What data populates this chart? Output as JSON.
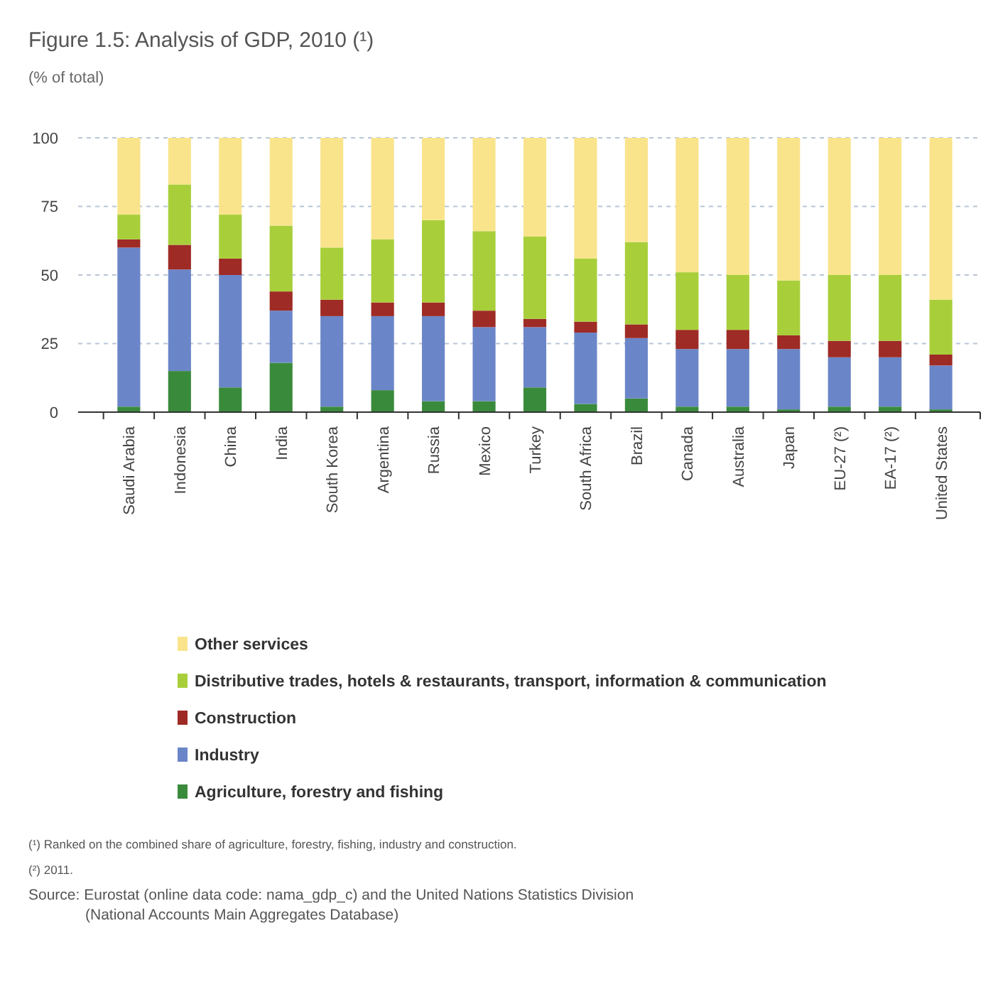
{
  "chart_data": {
    "type": "bar",
    "stacked": true,
    "title": "Figure 1.5: Analysis of GDP, 2010 (¹)",
    "subtitle": "(% of total)",
    "categories": [
      "Saudi Arabia",
      "Indonesia",
      "China",
      "India",
      "South Korea",
      "Argentina",
      "Russia",
      "Mexico",
      "Turkey",
      "South Africa",
      "Brazil",
      "Canada",
      "Australia",
      "Japan",
      "EU-27 (²)",
      "EA-17 (²)",
      "United States"
    ],
    "series": [
      {
        "name": "Agriculture, forestry and fishing",
        "color": "#3a8a3c",
        "values": [
          2,
          15,
          9,
          18,
          2,
          8,
          4,
          4,
          9,
          3,
          5,
          2,
          2,
          1,
          2,
          2,
          1
        ]
      },
      {
        "name": "Industry",
        "color": "#6b86c8",
        "values": [
          58,
          37,
          41,
          19,
          33,
          27,
          31,
          27,
          22,
          26,
          22,
          21,
          21,
          22,
          18,
          18,
          16
        ]
      },
      {
        "name": "Construction",
        "color": "#9e2b25",
        "values": [
          3,
          9,
          6,
          7,
          6,
          5,
          5,
          6,
          3,
          4,
          5,
          7,
          7,
          5,
          6,
          6,
          4
        ]
      },
      {
        "name": "Distributive trades, hotels & restaurants, transport, information & communication",
        "color": "#a8cf3a",
        "values": [
          9,
          22,
          16,
          24,
          19,
          23,
          30,
          29,
          30,
          23,
          30,
          21,
          20,
          20,
          24,
          24,
          20
        ]
      },
      {
        "name": "Other services",
        "color": "#f9e48c",
        "values": [
          28,
          17,
          28,
          32,
          40,
          37,
          30,
          34,
          36,
          44,
          38,
          49,
          50,
          52,
          50,
          50,
          59
        ]
      }
    ],
    "ylim": [
      0,
      100
    ],
    "yticks": [
      0,
      25,
      50,
      75,
      100
    ],
    "grid": "y",
    "legend": "bottom",
    "annotations": [
      "(¹) Ranked on the combined share of agriculture, forestry, fishing, industry and construction.",
      "(²) 2011.",
      "Source: Eurostat (online data code: nama_gdp_c) and the United Nations Statistics Division (National Accounts Main Aggregates Database)"
    ]
  }
}
